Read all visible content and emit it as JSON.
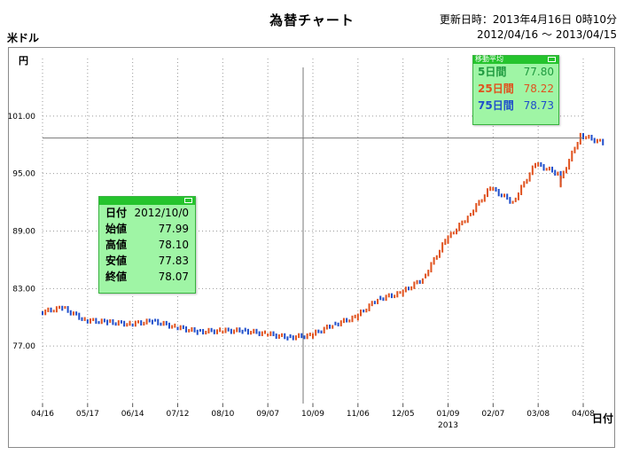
{
  "title": "為替チャート",
  "updated": "更新日時：2013年4月16日 0時10分",
  "range": "2012/04/16 〜 2013/04/15",
  "pair": "米ドル",
  "y_unit": "円",
  "x_unit": "日付",
  "x_year_label": "2013",
  "colors": {
    "up": "#e0521e",
    "down": "#1f4ecb",
    "grid": "#9a9a9a",
    "ma5": "#1f9a3f",
    "ma25": "#e0521e",
    "ma75": "#1f4ecb"
  },
  "ohlc_panel": {
    "rows": [
      {
        "label": "日付",
        "value": "2012/10/0"
      },
      {
        "label": "始値",
        "value": "77.99"
      },
      {
        "label": "高値",
        "value": "78.10"
      },
      {
        "label": "安値",
        "value": "77.83"
      },
      {
        "label": "終値",
        "value": "78.07"
      }
    ]
  },
  "ma_panel": {
    "title": "移動平均",
    "rows": [
      {
        "label": "5日間",
        "value": "77.80"
      },
      {
        "label": "25日間",
        "value": "78.22"
      },
      {
        "label": "75日間",
        "value": "78.73"
      }
    ]
  },
  "chart_data": {
    "type": "line",
    "ylim": [
      71,
      107
    ],
    "y_ticks": [
      77,
      83,
      89,
      95,
      101
    ],
    "y_tick_labels": [
      "77.00",
      "83.00",
      "89.00",
      "95.00",
      "101.00"
    ],
    "x_ticks": [
      "04/16",
      "05/17",
      "06/14",
      "07/12",
      "08/10",
      "09/07",
      "10/09",
      "11/06",
      "12/05",
      "01/09",
      "02/07",
      "03/08",
      "04/08"
    ],
    "crosshair": {
      "x_tick": "10/09",
      "y": 98.7
    },
    "series": [
      {
        "x": [
          "04/16",
          "05/01",
          "05/17",
          "06/01",
          "06/14",
          "07/01",
          "07/12",
          "07/26",
          "08/10",
          "08/24",
          "09/07",
          "09/21",
          "10/09",
          "10/22",
          "11/06",
          "11/20",
          "12/05",
          "12/20",
          "01/09",
          "01/24",
          "02/07",
          "02/22",
          "03/08",
          "03/21",
          "04/01",
          "04/08",
          "04/15"
        ],
        "values": [
          80.5,
          81.0,
          79.7,
          79.5,
          79.3,
          79.6,
          79.0,
          78.5,
          78.6,
          78.6,
          78.3,
          77.9,
          78.1,
          79.2,
          80.0,
          81.9,
          82.5,
          84.0,
          88.0,
          90.5,
          93.5,
          92.0,
          96.0,
          95.0,
          93.8,
          99.0,
          98.2
        ]
      }
    ]
  }
}
